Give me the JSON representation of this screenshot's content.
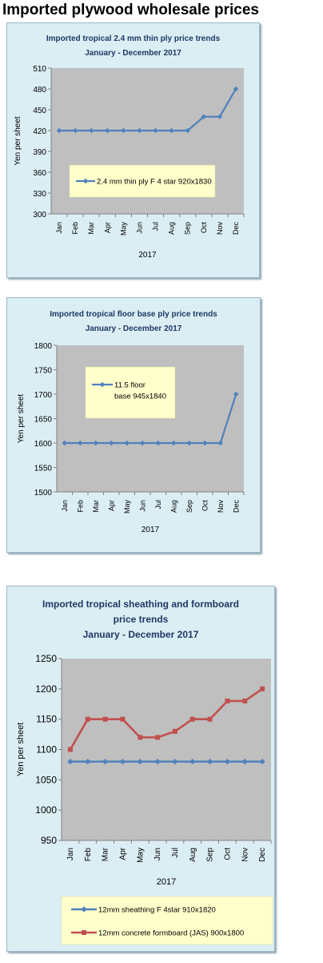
{
  "page": {
    "title": "Imported plywood wholesale prices"
  },
  "chart_data": [
    {
      "type": "line",
      "title_lines": [
        "Imported tropical 2.4 mm thin ply price trends",
        "January - December 2017"
      ],
      "categories": [
        "Jan",
        "Feb",
        "Mar",
        "Apr",
        "May",
        "Jun",
        "Jul",
        "Aug",
        "Sep",
        "Oct",
        "Nov",
        "Dec"
      ],
      "xlabel": "2017",
      "ylabel": "Yen per sheet",
      "ylim": [
        300,
        510
      ],
      "yticks": [
        300,
        330,
        360,
        390,
        420,
        450,
        480,
        510
      ],
      "grid": false,
      "legend_position": "lower-center",
      "series": [
        {
          "name": "2.4 mm thin ply F 4 star 920x1830",
          "color": "#4f81bd",
          "values": [
            420,
            420,
            420,
            420,
            420,
            420,
            420,
            420,
            420,
            440,
            440,
            480
          ]
        }
      ]
    },
    {
      "type": "line",
      "title_lines": [
        "Imported tropical floor base ply price trends",
        "January - December 2017"
      ],
      "categories": [
        "Jan",
        "Feb",
        "Mar",
        "Apr",
        "May",
        "Jun",
        "Jul",
        "Aug",
        "Sep",
        "Oct",
        "Nov",
        "Dec"
      ],
      "xlabel": "2017",
      "ylabel": "Yen per sheet",
      "ylim": [
        1500,
        1800
      ],
      "yticks": [
        1500,
        1550,
        1600,
        1650,
        1700,
        1750,
        1800
      ],
      "grid": false,
      "legend_position": "top-left",
      "series": [
        {
          "name": "11.5 floor base 945x1840",
          "color": "#4f81bd",
          "values": [
            1600,
            1600,
            1600,
            1600,
            1600,
            1600,
            1600,
            1600,
            1600,
            1600,
            1600,
            1700
          ]
        }
      ]
    },
    {
      "type": "line",
      "title_lines": [
        "Imported tropical sheathing and formboard",
        "price trends",
        "January - December 2017"
      ],
      "categories": [
        "Jan",
        "Feb",
        "Mar",
        "Apr",
        "May",
        "Jun",
        "Jul",
        "Aug",
        "Sep",
        "Oct",
        "Nov",
        "Dec"
      ],
      "xlabel": "2017",
      "ylabel": "Yen per sheet",
      "ylim": [
        950,
        1250
      ],
      "yticks": [
        950,
        1000,
        1050,
        1100,
        1150,
        1200,
        1250
      ],
      "grid": false,
      "legend_position": "bottom",
      "series": [
        {
          "name": "12mm sheathing F 4star 910x1820",
          "color": "#4f81bd",
          "values": [
            1080,
            1080,
            1080,
            1080,
            1080,
            1080,
            1080,
            1080,
            1080,
            1080,
            1080,
            1080
          ]
        },
        {
          "name": "12mm concrete formboard (JAS) 900x1800",
          "color": "#c0504d",
          "values": [
            1100,
            1150,
            1150,
            1150,
            1120,
            1120,
            1130,
            1150,
            1150,
            1180,
            1180,
            1200
          ]
        }
      ]
    }
  ]
}
